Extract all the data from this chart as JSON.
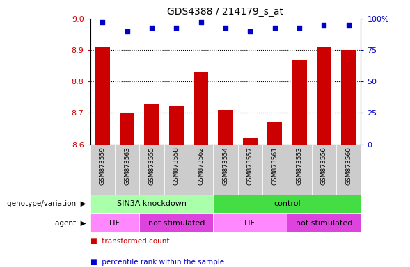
{
  "title": "GDS4388 / 214179_s_at",
  "samples": [
    "GSM873559",
    "GSM873563",
    "GSM873555",
    "GSM873558",
    "GSM873562",
    "GSM873554",
    "GSM873557",
    "GSM873561",
    "GSM873553",
    "GSM873556",
    "GSM873560"
  ],
  "bar_values": [
    8.91,
    8.7,
    8.73,
    8.72,
    8.83,
    8.71,
    8.62,
    8.67,
    8.87,
    8.91,
    8.9
  ],
  "bar_base": 8.6,
  "percentile_values": [
    97,
    90,
    93,
    93,
    97,
    93,
    90,
    93,
    93,
    95,
    95
  ],
  "bar_color": "#cc0000",
  "percentile_color": "#0000cc",
  "ylim_left": [
    8.6,
    9.0
  ],
  "ylim_right": [
    0,
    100
  ],
  "yticks_left": [
    8.6,
    8.7,
    8.8,
    8.9,
    9.0
  ],
  "yticks_right": [
    0,
    25,
    50,
    75,
    100
  ],
  "dotted_lines": [
    8.7,
    8.8,
    8.9
  ],
  "genotype_groups": [
    {
      "label": "SIN3A knockdown",
      "start": 0,
      "end": 5,
      "color": "#aaffaa"
    },
    {
      "label": "control",
      "start": 5,
      "end": 11,
      "color": "#44dd44"
    }
  ],
  "agent_groups": [
    {
      "label": "LIF",
      "start": 0,
      "end": 2,
      "color": "#ff88ff"
    },
    {
      "label": "not stimulated",
      "start": 2,
      "end": 5,
      "color": "#dd44dd"
    },
    {
      "label": "LIF",
      "start": 5,
      "end": 8,
      "color": "#ff88ff"
    },
    {
      "label": "not stimulated",
      "start": 8,
      "end": 11,
      "color": "#dd44dd"
    }
  ],
  "legend_items": [
    {
      "label": "transformed count",
      "color": "#cc0000"
    },
    {
      "label": "percentile rank within the sample",
      "color": "#0000cc"
    }
  ],
  "tick_color_left": "#cc0000",
  "tick_color_right": "#0000cc",
  "background_color": "#ffffff",
  "bar_width": 0.6,
  "genotype_label": "genotype/variation",
  "agent_label": "agent",
  "sample_box_color": "#cccccc",
  "right_axis_labels": [
    "0",
    "25",
    "50",
    "75",
    "100%"
  ]
}
